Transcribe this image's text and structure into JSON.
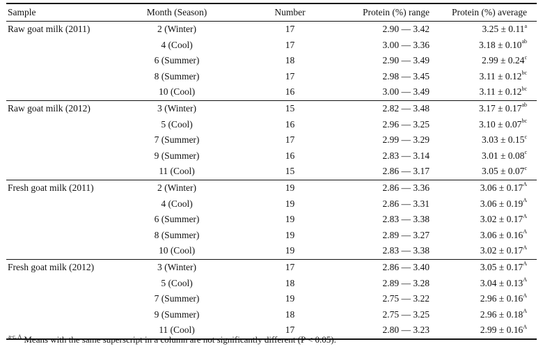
{
  "headers": {
    "sample": "Sample",
    "month": "Month (Season)",
    "number": "Number",
    "range": "Protein (%) range",
    "average": "Protein (%) average"
  },
  "groups": [
    {
      "sample": "Raw goat milk (2011)",
      "rows": [
        {
          "month": "2 (Winter)",
          "number": "17",
          "range": "2.90 — 3.42",
          "avg": "3.25 ± 0.11",
          "sup": "a"
        },
        {
          "month": "4 (Cool)",
          "number": "17",
          "range": "3.00 — 3.36",
          "avg": "3.18 ± 0.10",
          "sup": "ab"
        },
        {
          "month": "6 (Summer)",
          "number": "18",
          "range": "2.90 — 3.49",
          "avg": "2.99 ± 0.24",
          "sup": "c"
        },
        {
          "month": "8 (Summer)",
          "number": "17",
          "range": "2.98 — 3.45",
          "avg": "3.11 ± 0.12",
          "sup": "bc"
        },
        {
          "month": "10 (Cool)",
          "number": "16",
          "range": "3.00 — 3.49",
          "avg": "3.11 ± 0.12",
          "sup": "bc"
        }
      ]
    },
    {
      "sample": "Raw goat milk (2012)",
      "rows": [
        {
          "month": "3 (Winter)",
          "number": "15",
          "range": "2.82 — 3.48",
          "avg": "3.17 ± 0.17",
          "sup": "ab"
        },
        {
          "month": "5 (Cool)",
          "number": "16",
          "range": "2.96 — 3.25",
          "avg": "3.10 ± 0.07",
          "sup": "bc"
        },
        {
          "month": "7 (Summer)",
          "number": "17",
          "range": "2.99 — 3.29",
          "avg": "3.03 ± 0.15",
          "sup": "c"
        },
        {
          "month": "9 (Summer)",
          "number": "16",
          "range": "2.83 — 3.14",
          "avg": "3.01 ± 0.08",
          "sup": "c"
        },
        {
          "month": "11 (Cool)",
          "number": "15",
          "range": "2.86 — 3.17",
          "avg": "3.05 ± 0.07",
          "sup": "c"
        }
      ]
    },
    {
      "sample": "Fresh goat milk (2011)",
      "rows": [
        {
          "month": "2 (Winter)",
          "number": "19",
          "range": "2.86 — 3.36",
          "avg": "3.06 ± 0.17",
          "sup": "A"
        },
        {
          "month": "4 (Cool)",
          "number": "19",
          "range": "2.86 — 3.31",
          "avg": "3.06 ± 0.19",
          "sup": "A"
        },
        {
          "month": "6 (Summer)",
          "number": "19",
          "range": "2.83 — 3.38",
          "avg": "3.02 ± 0.17",
          "sup": "A"
        },
        {
          "month": "8 (Summer)",
          "number": "19",
          "range": "2.89 — 3.27",
          "avg": "3.06 ± 0.16",
          "sup": "A"
        },
        {
          "month": "10 (Cool)",
          "number": "19",
          "range": "2.83 — 3.38",
          "avg": "3.02 ± 0.17",
          "sup": "A"
        }
      ]
    },
    {
      "sample": "Fresh goat milk (2012)",
      "rows": [
        {
          "month": "3 (Winter)",
          "number": "17",
          "range": "2.86 — 3.40",
          "avg": "3.05 ± 0.17",
          "sup": "A"
        },
        {
          "month": "5 (Cool)",
          "number": "18",
          "range": "2.89 — 3.28",
          "avg": "3.04 ± 0.13",
          "sup": "A"
        },
        {
          "month": "7 (Summer)",
          "number": "19",
          "range": "2.75 — 3.22",
          "avg": "2.96 ± 0.16",
          "sup": "A"
        },
        {
          "month": "9 (Summer)",
          "number": "18",
          "range": "2.75 — 3.25",
          "avg": "2.96 ± 0.18",
          "sup": "A"
        },
        {
          "month": "11 (Cool)",
          "number": "17",
          "range": "2.80 — 3.23",
          "avg": "2.99 ± 0.16",
          "sup": "A"
        }
      ]
    }
  ],
  "footnote": {
    "sup": "a-c, A",
    "text": " Means with the same superscript in a column are not significantly different (P < 0.05)."
  }
}
